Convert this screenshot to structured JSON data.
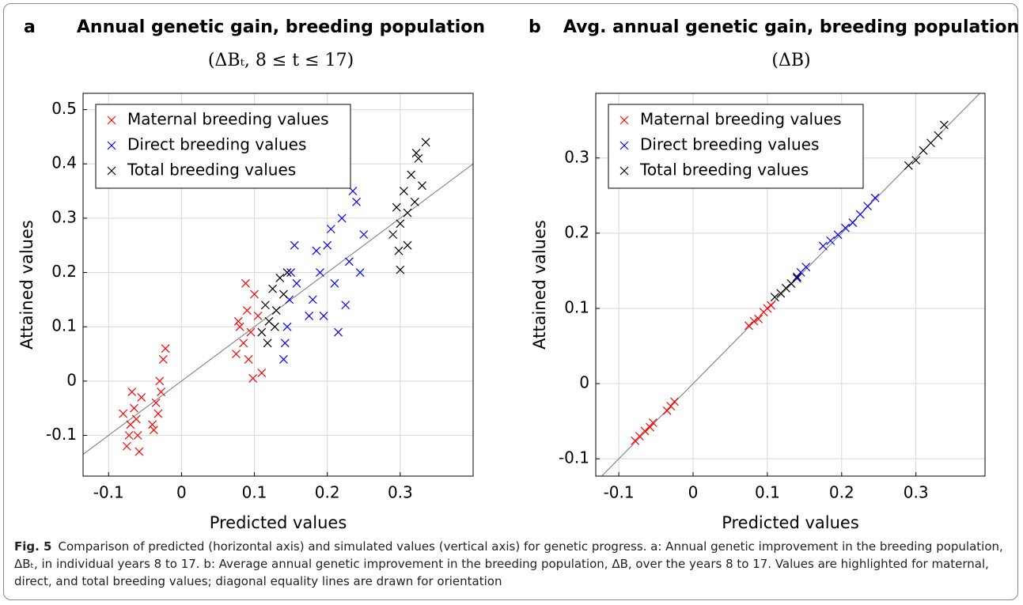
{
  "chart_data": [
    {
      "type": "scatter",
      "panel": "a",
      "title": "Annual genetic gain, breeding population",
      "subtitle": "(ΔBₜ, 8 ≤ t ≤ 17)",
      "x_label": "Predicted values",
      "y_label": "Attained values",
      "xlim": [
        -0.135,
        0.4
      ],
      "ylim": [
        -0.175,
        0.53
      ],
      "xticks": [
        -0.1,
        0,
        0.1,
        0.2,
        0.3
      ],
      "yticks": [
        -0.1,
        0,
        0.1,
        0.2,
        0.3,
        0.4,
        0.5
      ],
      "grid": true,
      "diagonal_line": true,
      "legend": "upper left",
      "series": [
        {
          "name": "Maternal breeding values",
          "color": "#ff0000",
          "x": [
            -0.075,
            -0.07,
            -0.065,
            -0.06,
            -0.055,
            -0.08,
            -0.068,
            -0.058,
            -0.072,
            -0.062,
            -0.04,
            -0.035,
            -0.03,
            -0.025,
            -0.032,
            -0.028,
            -0.022,
            -0.038,
            0.075,
            0.08,
            0.085,
            0.09,
            0.095,
            0.1,
            0.105,
            0.098,
            0.088,
            0.11,
            0.078,
            0.092
          ],
          "values": [
            -0.12,
            -0.08,
            -0.05,
            -0.1,
            -0.03,
            -0.06,
            -0.02,
            -0.13,
            -0.1,
            -0.07,
            -0.08,
            -0.04,
            0.0,
            0.04,
            -0.06,
            -0.02,
            0.06,
            -0.09,
            0.05,
            0.1,
            0.07,
            0.13,
            0.09,
            0.16,
            0.12,
            0.005,
            0.18,
            0.015,
            0.11,
            0.04
          ]
        },
        {
          "name": "Direct breeding values",
          "color": "#0000ff",
          "x": [
            0.14,
            0.145,
            0.15,
            0.155,
            0.148,
            0.142,
            0.158,
            0.18,
            0.19,
            0.2,
            0.21,
            0.22,
            0.23,
            0.24,
            0.25,
            0.215,
            0.195,
            0.235,
            0.205,
            0.225,
            0.185,
            0.245,
            0.175
          ],
          "values": [
            0.04,
            0.1,
            0.2,
            0.25,
            0.15,
            0.07,
            0.18,
            0.15,
            0.2,
            0.25,
            0.18,
            0.3,
            0.22,
            0.33,
            0.27,
            0.09,
            0.12,
            0.35,
            0.28,
            0.14,
            0.24,
            0.2,
            0.12
          ]
        },
        {
          "name": "Total breeding values",
          "color": "#000000",
          "x": [
            0.11,
            0.115,
            0.12,
            0.125,
            0.13,
            0.135,
            0.14,
            0.145,
            0.118,
            0.128,
            0.29,
            0.295,
            0.3,
            0.305,
            0.31,
            0.315,
            0.32,
            0.325,
            0.33,
            0.335,
            0.3,
            0.31,
            0.322,
            0.298
          ],
          "values": [
            0.09,
            0.14,
            0.11,
            0.17,
            0.13,
            0.19,
            0.16,
            0.2,
            0.07,
            0.1,
            0.27,
            0.32,
            0.29,
            0.35,
            0.31,
            0.38,
            0.33,
            0.41,
            0.36,
            0.44,
            0.205,
            0.25,
            0.42,
            0.24
          ]
        }
      ]
    },
    {
      "type": "scatter",
      "panel": "b",
      "title": "Avg. annual genetic gain, breeding population",
      "subtitle": "(ΔB)",
      "x_label": "Predicted values",
      "y_label": "Attained values",
      "xlim": [
        -0.131,
        0.393
      ],
      "ylim": [
        -0.123,
        0.386
      ],
      "xticks": [
        -0.1,
        0,
        0.1,
        0.2,
        0.3
      ],
      "yticks": [
        -0.1,
        0,
        0.1,
        0.2,
        0.3
      ],
      "grid": true,
      "diagonal_line": true,
      "legend": "upper left",
      "series": [
        {
          "name": "Maternal breeding values",
          "color": "#ff0000",
          "x": [
            -0.078,
            -0.072,
            -0.065,
            -0.058,
            -0.054,
            -0.035,
            -0.03,
            -0.025,
            0.075,
            0.082,
            0.088,
            0.095,
            0.1,
            0.105
          ],
          "values": [
            -0.076,
            -0.07,
            -0.063,
            -0.058,
            -0.052,
            -0.036,
            -0.03,
            -0.024,
            0.077,
            0.083,
            0.086,
            0.095,
            0.1,
            0.104
          ]
        },
        {
          "name": "Direct breeding values",
          "color": "#0000ff",
          "x": [
            0.14,
            0.145,
            0.152,
            0.175,
            0.185,
            0.195,
            0.205,
            0.215,
            0.225,
            0.235,
            0.245
          ],
          "values": [
            0.14,
            0.148,
            0.155,
            0.183,
            0.19,
            0.198,
            0.207,
            0.214,
            0.225,
            0.236,
            0.247
          ]
        },
        {
          "name": "Total breeding values",
          "color": "#000000",
          "x": [
            0.11,
            0.118,
            0.125,
            0.132,
            0.14,
            0.29,
            0.3,
            0.31,
            0.32,
            0.33,
            0.338
          ],
          "values": [
            0.115,
            0.12,
            0.127,
            0.133,
            0.142,
            0.29,
            0.297,
            0.31,
            0.32,
            0.33,
            0.344
          ]
        }
      ]
    }
  ],
  "caption": {
    "label": "Fig. 5",
    "text": "Comparison of predicted (horizontal axis) and simulated values (vertical axis) for genetic progress. a: Annual genetic improvement in the breeding population, ΔBₜ, in individual years 8 to 17. b: Average annual genetic improvement in the breeding population, ΔB, over the years 8 to 17. Values are highlighted for maternal, direct, and total breeding values; diagonal equality lines are drawn for orientation"
  }
}
